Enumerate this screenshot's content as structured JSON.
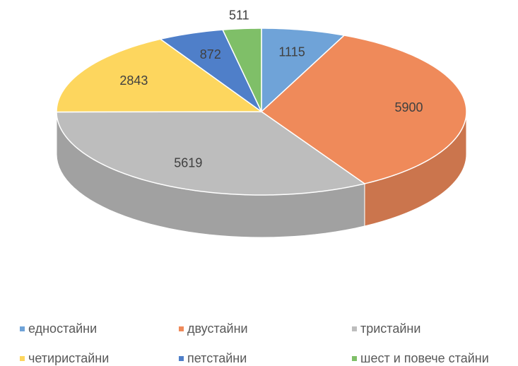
{
  "chart_data": {
    "type": "pie3d",
    "categories": [
      "едностайни",
      "двустайни",
      "тристайни",
      "четиристайни",
      "петстайни",
      "шест и повече стайни"
    ],
    "values": [
      1115,
      5900,
      5619,
      2843,
      872,
      511
    ],
    "colors": [
      "#6fa3d8",
      "#ef8a5a",
      "#bdbdbd",
      "#fdd65e",
      "#4f7fc9",
      "#7fbf68"
    ],
    "legend": "bottom"
  }
}
